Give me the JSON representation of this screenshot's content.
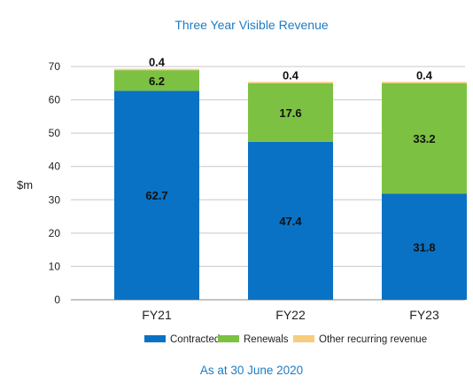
{
  "chart_data": {
    "type": "bar",
    "stacked": true,
    "title": "Three Year Visible Revenue",
    "footnote": "As at 30 June 2020",
    "ylabel": "$m",
    "xlabel": "",
    "ylim": [
      0,
      70
    ],
    "yticks": [
      "0",
      "10",
      "20",
      "30",
      "40",
      "50",
      "60",
      "70"
    ],
    "grid": true,
    "legend_position": "bottom",
    "categories": [
      "FY21",
      "FY22",
      "FY23"
    ],
    "series": [
      {
        "name": "Contracted",
        "color": "#0a72c4",
        "values": [
          62.7,
          47.4,
          31.8
        ],
        "labels": [
          "62.7",
          "47.4",
          "31.8"
        ]
      },
      {
        "name": "Renewals",
        "color": "#7cc142",
        "values": [
          6.2,
          17.6,
          33.2
        ],
        "labels": [
          "6.2",
          "17.6",
          "33.2"
        ]
      },
      {
        "name": "Other recurring revenue",
        "color": "#f6cd7c",
        "values": [
          0.4,
          0.4,
          0.4
        ],
        "labels": [
          "0.4",
          "0.4",
          "0.4"
        ]
      }
    ]
  }
}
